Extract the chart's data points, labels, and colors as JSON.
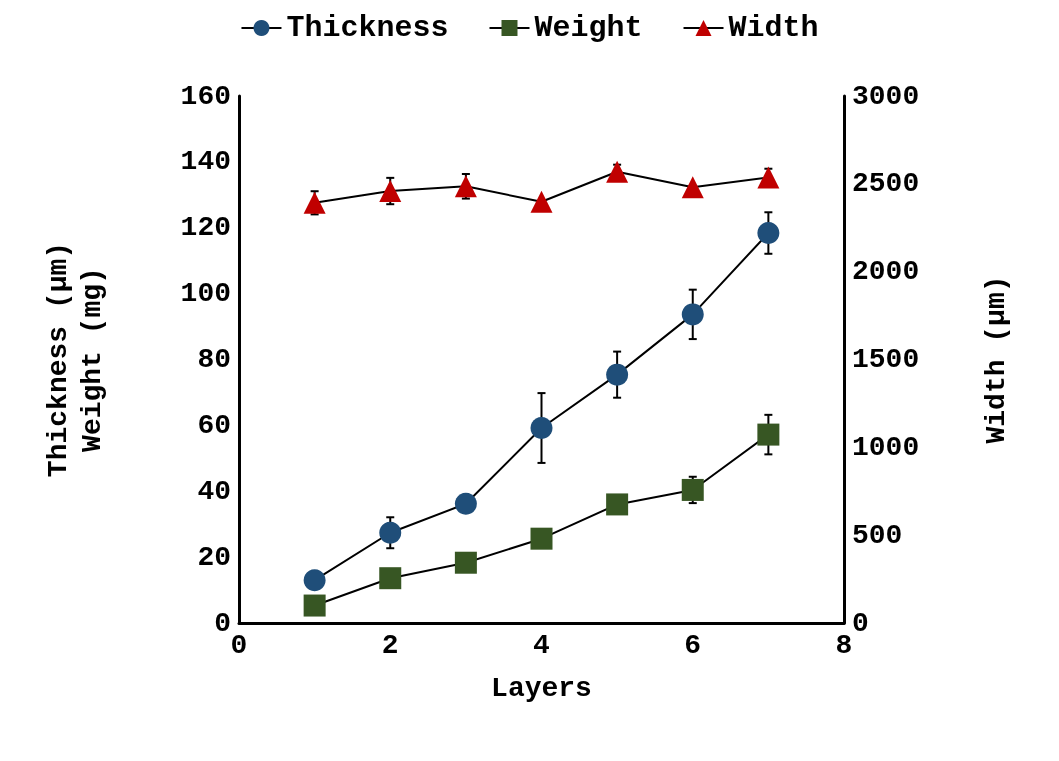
{
  "chart_data": {
    "type": "line",
    "xlabel": "Layers",
    "ylabel": "Thickness (μm)\nWeight (mg)",
    "y2label": "Width (μm)",
    "x": [
      1,
      2,
      3,
      4,
      5,
      6,
      7
    ],
    "series": [
      {
        "name": "Thickness",
        "color": "#1f4e79",
        "marker": "circle",
        "values": [
          13,
          27.4,
          36.2,
          59.2,
          75.4,
          93.7,
          118.4
        ],
        "errors": [
          null,
          4.7,
          null,
          10.6,
          7,
          7.5,
          6.3
        ]
      },
      {
        "name": "Weight",
        "color": "#375623",
        "marker": "square",
        "values": [
          5.3,
          13.6,
          18.3,
          25.6,
          36,
          40.4,
          57.2
        ],
        "errors": [
          null,
          null,
          null,
          null,
          null,
          4,
          6
        ]
      },
      {
        "name": "Width",
        "color": "#c00000",
        "marker": "triangle",
        "axis": "y2",
        "values": [
          2392,
          2459,
          2486,
          2398,
          2569,
          2481,
          2536
        ],
        "errors": [
          66,
          75,
          70,
          null,
          40,
          null,
          50
        ]
      }
    ],
    "xlim": [
      0,
      8
    ],
    "xticks": [
      0,
      2,
      4,
      6,
      8
    ],
    "ylim": [
      0,
      160
    ],
    "yticks": [
      0,
      20,
      40,
      60,
      80,
      100,
      120,
      140,
      160
    ],
    "y2lim": [
      0,
      3000
    ],
    "y2ticks": [
      0,
      500,
      1000,
      1500,
      2000,
      2500,
      3000
    ],
    "grid": false,
    "legend": "top"
  }
}
